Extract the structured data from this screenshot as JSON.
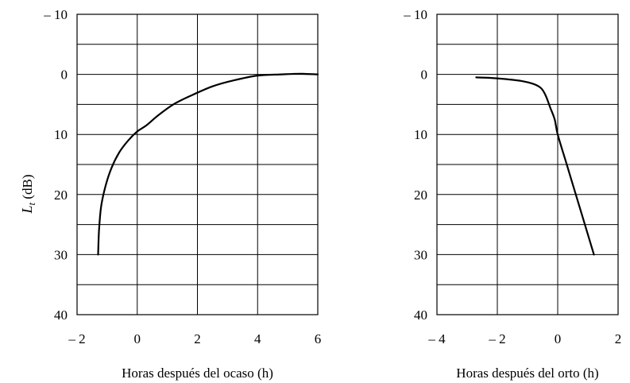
{
  "chart_data": [
    {
      "type": "line",
      "title": "",
      "xlabel": "Horas después del ocaso (h)",
      "ylabel": {
        "symbol": "L",
        "subscript": "t",
        "unit": "(dB)"
      },
      "xlim": [
        -2,
        6
      ],
      "ylim": [
        -10,
        40
      ],
      "y_inverted": true,
      "x_ticks": [
        {
          "value": -2,
          "label": "– 2"
        },
        {
          "value": 0,
          "label": "0"
        },
        {
          "value": 2,
          "label": "2"
        },
        {
          "value": 4,
          "label": "4"
        },
        {
          "value": 6,
          "label": "6"
        }
      ],
      "y_ticks": [
        {
          "value": -10,
          "label": "– 10"
        },
        {
          "value": 0,
          "label": "0"
        },
        {
          "value": 10,
          "label": "10"
        },
        {
          "value": 20,
          "label": "20"
        },
        {
          "value": 30,
          "label": "30"
        },
        {
          "value": 40,
          "label": "40"
        }
      ],
      "x_grid": [
        -2,
        0,
        2,
        4,
        6
      ],
      "y_grid": [
        -10,
        -5,
        0,
        5,
        10,
        15,
        20,
        25,
        30,
        35,
        40
      ],
      "grid": true,
      "series": [
        {
          "x": [
            -1.3,
            -1.27,
            -1.2,
            -1.05,
            -0.85,
            -0.6,
            -0.3,
            0,
            0.3,
            0.7,
            1.2,
            1.8,
            2.5,
            3.2,
            4,
            4.8,
            5.4,
            6
          ],
          "y": [
            30,
            26,
            22,
            18.5,
            15.5,
            13,
            11,
            9.5,
            8.5,
            6.8,
            5,
            3.5,
            2,
            1,
            0.2,
            0,
            -0.1,
            0
          ]
        }
      ]
    },
    {
      "type": "line",
      "title": "",
      "xlabel": "Horas después del orto (h)",
      "ylabel": "",
      "xlim": [
        -4,
        2
      ],
      "ylim": [
        -10,
        40
      ],
      "y_inverted": true,
      "x_ticks": [
        {
          "value": -4,
          "label": "– 4"
        },
        {
          "value": -2,
          "label": "– 2"
        },
        {
          "value": 0,
          "label": "0"
        },
        {
          "value": 2,
          "label": "2"
        }
      ],
      "y_ticks": [
        {
          "value": -10,
          "label": "– 10"
        },
        {
          "value": 0,
          "label": "0"
        },
        {
          "value": 10,
          "label": "10"
        },
        {
          "value": 20,
          "label": "20"
        },
        {
          "value": 30,
          "label": "30"
        },
        {
          "value": 40,
          "label": "40"
        }
      ],
      "x_grid": [
        -4,
        -2,
        0,
        2
      ],
      "y_grid": [
        -10,
        -5,
        0,
        5,
        10,
        15,
        20,
        25,
        30,
        35,
        40
      ],
      "grid": true,
      "series": [
        {
          "x": [
            -2.7,
            -2.2,
            -1.7,
            -1.2,
            -0.8,
            -0.55,
            -0.4,
            -0.25,
            -0.1,
            0,
            0.3,
            0.6,
            0.9,
            1.2
          ],
          "y": [
            0.5,
            0.6,
            0.8,
            1.1,
            1.6,
            2.3,
            3.5,
            5.5,
            7.5,
            10,
            15,
            20,
            25,
            30
          ]
        }
      ]
    }
  ]
}
